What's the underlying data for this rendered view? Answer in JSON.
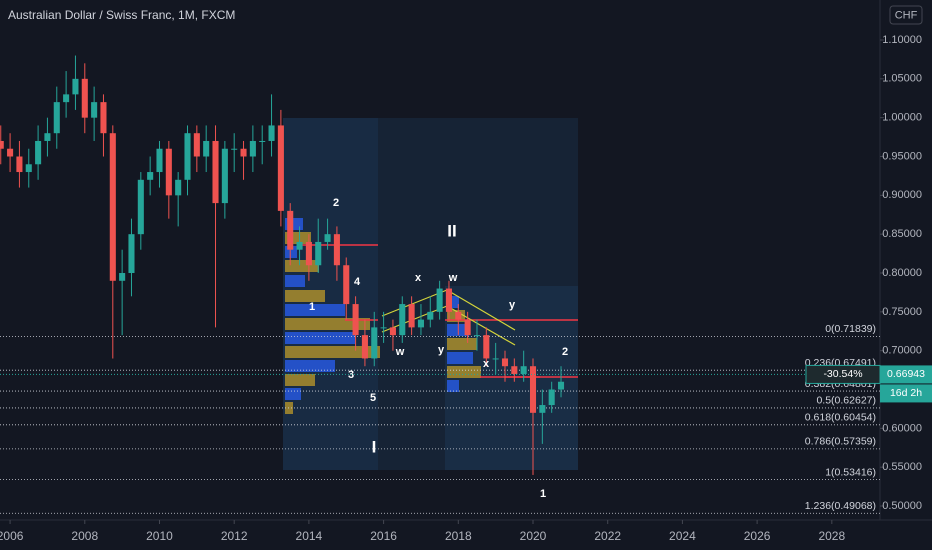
{
  "chart_data": {
    "type": "candlestick",
    "title": "Australian Dollar / Swiss Franc, 1M, FXCM",
    "currency": "CHF",
    "x": [
      2005.75,
      2006,
      2006.25,
      2006.5,
      2006.75,
      2007,
      2007.25,
      2007.5,
      2007.75,
      2008,
      2008.25,
      2008.5,
      2008.75,
      2009,
      2009.25,
      2009.5,
      2009.75,
      2010,
      2010.25,
      2010.5,
      2010.75,
      2011,
      2011.25,
      2011.5,
      2011.75,
      2012,
      2012.25,
      2012.5,
      2012.75,
      2013,
      2013.25,
      2013.5,
      2013.75,
      2014,
      2014.25,
      2014.5,
      2014.75,
      2015,
      2015.25,
      2015.5,
      2015.75,
      2016,
      2016.25,
      2016.5,
      2016.75,
      2017,
      2017.25,
      2017.5,
      2017.75,
      2018,
      2018.25,
      2018.5,
      2018.75,
      2019,
      2019.25,
      2019.5,
      2019.75,
      2020,
      2020.25,
      2020.5,
      2020.75
    ],
    "open": [
      0.97,
      0.96,
      0.95,
      0.93,
      0.94,
      0.97,
      0.98,
      1.02,
      1.03,
      1.05,
      1.0,
      1.02,
      0.98,
      0.79,
      0.8,
      0.85,
      0.92,
      0.93,
      0.96,
      0.9,
      0.92,
      0.98,
      0.95,
      0.97,
      0.89,
      0.96,
      0.96,
      0.95,
      0.97,
      0.97,
      0.99,
      0.88,
      0.83,
      0.84,
      0.81,
      0.84,
      0.85,
      0.81,
      0.76,
      0.72,
      0.69,
      0.73,
      0.73,
      0.72,
      0.76,
      0.73,
      0.74,
      0.75,
      0.78,
      0.75,
      0.74,
      0.72,
      0.72,
      0.69,
      0.69,
      0.68,
      0.67,
      0.68,
      0.62,
      0.63,
      0.65
    ],
    "high": [
      0.99,
      0.98,
      0.97,
      0.96,
      0.99,
      1.0,
      1.04,
      1.06,
      1.08,
      1.07,
      1.04,
      1.03,
      0.99,
      0.83,
      0.87,
      0.93,
      0.95,
      0.97,
      0.97,
      0.93,
      0.99,
      0.99,
      0.99,
      0.99,
      0.97,
      0.98,
      0.97,
      0.99,
      0.99,
      1.03,
      1.01,
      0.89,
      0.86,
      0.85,
      0.87,
      0.87,
      0.86,
      0.82,
      0.77,
      0.74,
      0.75,
      0.75,
      0.74,
      0.77,
      0.77,
      0.76,
      0.77,
      0.79,
      0.79,
      0.76,
      0.75,
      0.74,
      0.73,
      0.71,
      0.7,
      0.69,
      0.7,
      0.69,
      0.65,
      0.66,
      0.68
    ],
    "low": [
      0.94,
      0.93,
      0.91,
      0.91,
      0.92,
      0.95,
      0.96,
      1.0,
      1.01,
      0.98,
      0.97,
      0.95,
      0.69,
      0.72,
      0.77,
      0.83,
      0.9,
      0.91,
      0.87,
      0.86,
      0.9,
      0.93,
      0.93,
      0.73,
      0.87,
      0.93,
      0.92,
      0.93,
      0.94,
      0.95,
      0.86,
      0.81,
      0.81,
      0.79,
      0.8,
      0.83,
      0.79,
      0.74,
      0.7,
      0.68,
      0.68,
      0.71,
      0.7,
      0.71,
      0.72,
      0.72,
      0.73,
      0.74,
      0.74,
      0.72,
      0.71,
      0.7,
      0.68,
      0.67,
      0.66,
      0.66,
      0.66,
      0.54,
      0.58,
      0.62,
      0.64
    ],
    "close": [
      0.96,
      0.95,
      0.93,
      0.94,
      0.97,
      0.98,
      1.02,
      1.03,
      1.05,
      1.0,
      1.02,
      0.98,
      0.79,
      0.8,
      0.85,
      0.92,
      0.93,
      0.96,
      0.9,
      0.92,
      0.98,
      0.95,
      0.97,
      0.89,
      0.96,
      0.96,
      0.95,
      0.97,
      0.97,
      0.99,
      0.88,
      0.83,
      0.84,
      0.81,
      0.84,
      0.85,
      0.81,
      0.76,
      0.72,
      0.69,
      0.73,
      0.73,
      0.72,
      0.76,
      0.73,
      0.74,
      0.75,
      0.78,
      0.75,
      0.74,
      0.72,
      0.72,
      0.69,
      0.69,
      0.68,
      0.67,
      0.68,
      0.62,
      0.63,
      0.65,
      0.66
    ],
    "up_color": "#26a69a",
    "down_color": "#ef5350",
    "xlim": [
      2005.73,
      2029.29
    ],
    "xticks": [
      2006,
      2008,
      2010,
      2012,
      2014,
      2016,
      2018,
      2020,
      2022,
      2024,
      2026,
      2028
    ],
    "ylim": [
      0.482,
      1.1515
    ],
    "yticks": [
      {
        "value": 0.5,
        "label": "0.50000"
      },
      {
        "value": 0.55,
        "label": "0.55000"
      },
      {
        "value": 0.6,
        "label": "0.60000"
      },
      {
        "value": 0.65,
        "label": "0.65000"
      },
      {
        "value": 0.7,
        "label": "0.70000"
      },
      {
        "value": 0.75,
        "label": "0.75000"
      },
      {
        "value": 0.8,
        "label": "0.80000"
      },
      {
        "value": 0.85,
        "label": "0.85000"
      },
      {
        "value": 0.9,
        "label": "0.90000"
      },
      {
        "value": 0.95,
        "label": "0.95000"
      },
      {
        "value": 1.0,
        "label": "1.00000"
      },
      {
        "value": 1.05,
        "label": "1.05000"
      },
      {
        "value": 1.1,
        "label": "1.10000"
      }
    ],
    "fib_levels": [
      {
        "value": 0.71839,
        "label": "0(0.71839)"
      },
      {
        "value": 0.67491,
        "label": "0.236(0.67491)"
      },
      {
        "value": 0.64801,
        "label": "0.382(0.64801)"
      },
      {
        "value": 0.62627,
        "label": "0.5(0.62627)"
      },
      {
        "value": 0.60454,
        "label": "0.618(0.60454)"
      },
      {
        "value": 0.57359,
        "label": "0.786(0.57359)"
      },
      {
        "value": 0.53416,
        "label": "1(0.53416)"
      },
      {
        "value": 0.49068,
        "label": "1.236(0.49068)"
      }
    ],
    "last_price": 0.66943,
    "change_label": "-30.54%",
    "countdown": "16d 2h",
    "wave_labels": [
      "2",
      "4",
      "1",
      "3",
      "5",
      "x",
      "w",
      "w",
      "y",
      "y",
      "x",
      "2",
      "1",
      "II",
      "I"
    ]
  }
}
